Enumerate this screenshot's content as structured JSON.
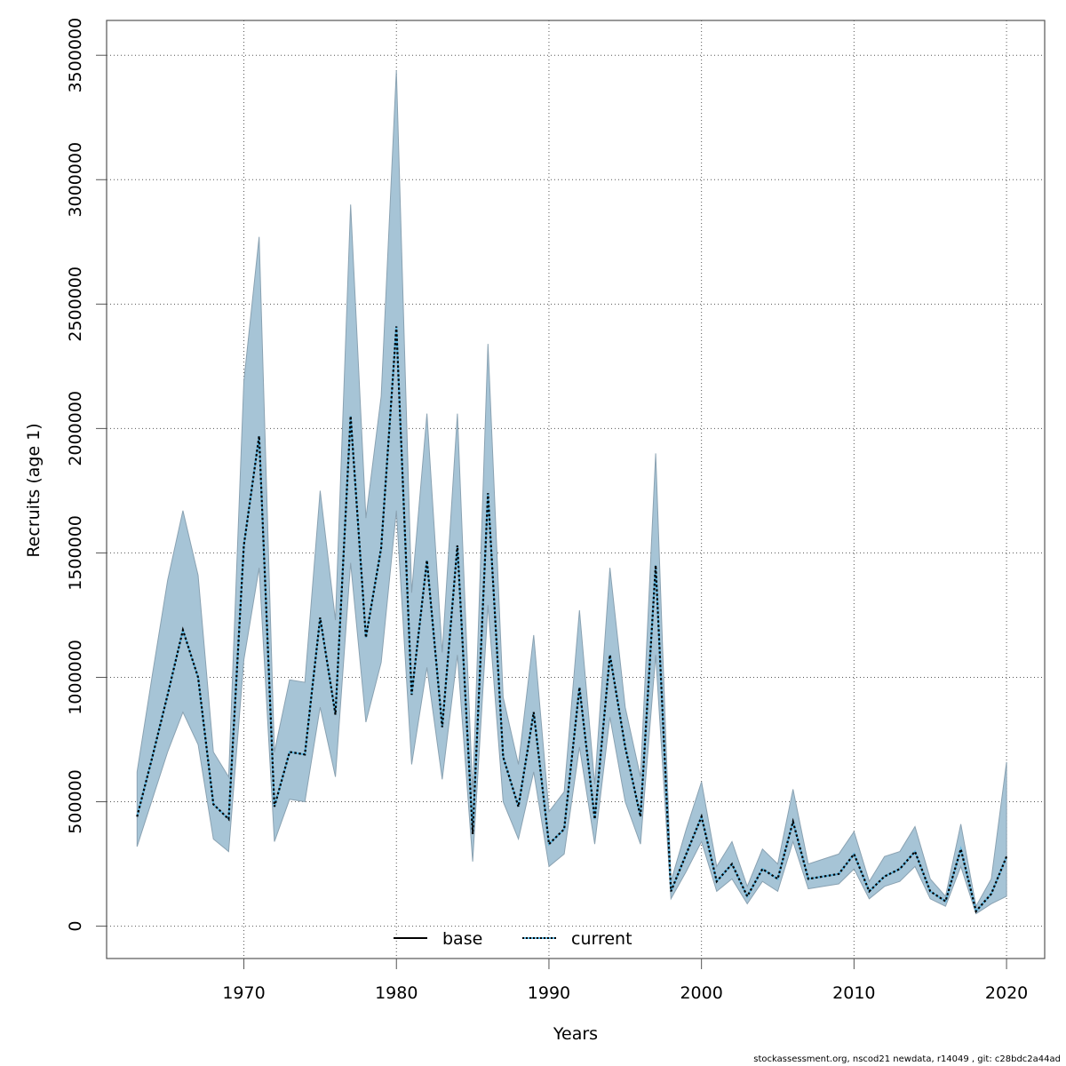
{
  "chart_data": {
    "type": "area",
    "title": "",
    "xlabel": "Years",
    "ylabel": "Recruits (age 1)",
    "xlim": [
      1961,
      2022.5
    ],
    "ylim": [
      -130000,
      3640000
    ],
    "grid": true,
    "x_ticks": [
      1970,
      1980,
      1990,
      2000,
      2010,
      2020
    ],
    "x_tick_labels": [
      "1970",
      "1980",
      "1990",
      "2000",
      "2010",
      "2020"
    ],
    "y_ticks": [
      0,
      500000,
      1000000,
      1500000,
      2000000,
      2500000,
      3000000,
      3500000
    ],
    "y_tick_labels": [
      "0",
      "500000",
      "1000000",
      "1500000",
      "2000000",
      "2500000",
      "3000000",
      "3500000"
    ],
    "legend": {
      "placement": "bottom",
      "entries": [
        {
          "label": "base",
          "style": "solid",
          "color": "#000000"
        },
        {
          "label": "current",
          "style": "dotted",
          "color": "#000000",
          "underlay_color": "#5bb5e0"
        }
      ]
    },
    "colors": {
      "band": "#a6c4d6",
      "band_edge": "#8aa2b2",
      "grid": "#555555"
    },
    "x": [
      1963,
      1964,
      1965,
      1966,
      1967,
      1968,
      1969,
      1970,
      1971,
      1972,
      1973,
      1974,
      1975,
      1976,
      1977,
      1978,
      1979,
      1980,
      1981,
      1982,
      1983,
      1984,
      1985,
      1986,
      1987,
      1988,
      1989,
      1990,
      1991,
      1992,
      1993,
      1994,
      1995,
      1996,
      1997,
      1998,
      1999,
      2000,
      2001,
      2002,
      2003,
      2004,
      2005,
      2006,
      2007,
      2008,
      2009,
      2010,
      2011,
      2012,
      2013,
      2014,
      2015,
      2016,
      2017,
      2018,
      2019,
      2020
    ],
    "series": [
      {
        "name": "current",
        "values": [
          440000,
          680000,
          930000,
          1190000,
          1000000,
          490000,
          430000,
          1530000,
          1970000,
          480000,
          700000,
          690000,
          1240000,
          850000,
          2050000,
          1160000,
          1520000,
          2410000,
          930000,
          1470000,
          800000,
          1530000,
          370000,
          1740000,
          680000,
          480000,
          860000,
          330000,
          390000,
          960000,
          430000,
          1090000,
          720000,
          440000,
          1450000,
          140000,
          290000,
          440000,
          180000,
          250000,
          120000,
          230000,
          190000,
          420000,
          190000,
          200000,
          210000,
          290000,
          140000,
          200000,
          230000,
          300000,
          140000,
          100000,
          310000,
          60000,
          130000,
          280000
        ]
      },
      {
        "name": "lower",
        "values": [
          320000,
          510000,
          700000,
          860000,
          730000,
          350000,
          300000,
          1070000,
          1440000,
          340000,
          510000,
          500000,
          880000,
          600000,
          1460000,
          820000,
          1060000,
          1670000,
          650000,
          1040000,
          590000,
          1090000,
          260000,
          1290000,
          500000,
          350000,
          620000,
          240000,
          290000,
          720000,
          330000,
          840000,
          500000,
          330000,
          1090000,
          110000,
          220000,
          340000,
          140000,
          190000,
          90000,
          180000,
          140000,
          340000,
          150000,
          160000,
          170000,
          230000,
          110000,
          160000,
          180000,
          240000,
          110000,
          80000,
          240000,
          50000,
          90000,
          120000
        ]
      },
      {
        "name": "upper",
        "values": [
          620000,
          1010000,
          1390000,
          1670000,
          1410000,
          700000,
          600000,
          2190000,
          2770000,
          700000,
          990000,
          980000,
          1750000,
          1230000,
          2900000,
          1640000,
          2130000,
          3440000,
          1340000,
          2060000,
          1100000,
          2060000,
          530000,
          2340000,
          920000,
          650000,
          1170000,
          460000,
          540000,
          1270000,
          570000,
          1440000,
          880000,
          600000,
          1900000,
          180000,
          390000,
          580000,
          240000,
          340000,
          160000,
          310000,
          250000,
          550000,
          250000,
          270000,
          290000,
          380000,
          180000,
          280000,
          300000,
          400000,
          190000,
          120000,
          410000,
          80000,
          190000,
          660000
        ]
      }
    ]
  },
  "footer": "stockassessment.org, nscod21  newdata, r14049 , git: c28bdc2a44ad"
}
